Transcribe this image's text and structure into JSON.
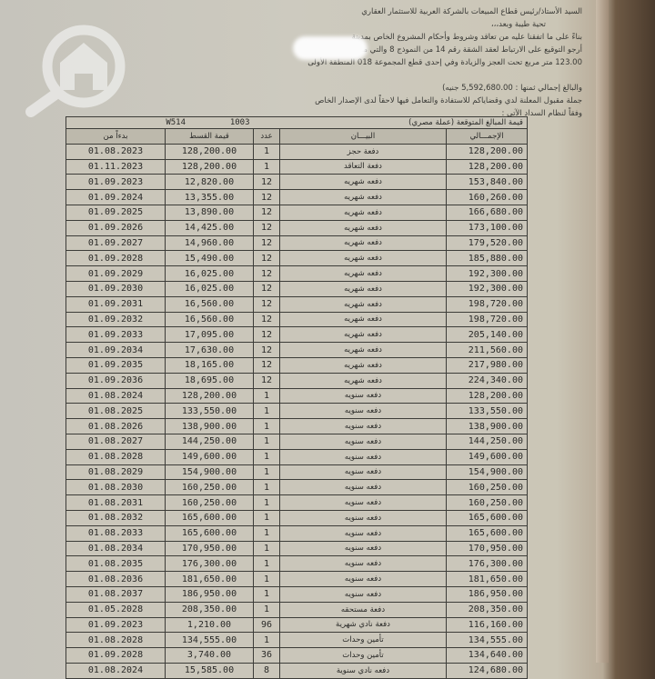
{
  "letter": {
    "salutation": "السيد الأستاذ/رئيس قطاع المبيعات بالشركة العربية للاستثمار العقاري",
    "greeting": "تحية طيبة وبعد،،،",
    "para1": [
      "بناءً على ما اتفقنا عليه من تعاقد وشروط وأحكام المشروع الخاص بمدينة",
      "أرجو التوقيع على الارتباط لعقد الشقة رقم 14 من النموذج 8 والتي مساحتها",
      "123.00 متر مربع تحت العجز والزيادة وفي إحدى قطع المجموعة 018 المنطقة الأولى"
    ],
    "total_line": "والبالغ إجمالي ثمنها : 5,592,680.00 جنيه)",
    "para2": [
      "جملة مقبول المعلنة لدي وقضاياكم للاستفادة والتعامل فيها لاحقاً لدى الإصدار الخاص",
      "وفقاً لنظام السداد الآتي :"
    ]
  },
  "watermark": "search-home-logo",
  "table": {
    "caption_codes": [
      "W514",
      "1003"
    ],
    "caption_title": "قيمة المبالغ المتوقعة (عملة مصري)",
    "headers": [
      "بدءاً من",
      "قيمة القسط",
      "عدد",
      "البيـــان",
      "الإجمـــالي"
    ],
    "rows": [
      [
        "01.08.2023",
        "128,200.00",
        "1",
        "دفعة حجز",
        "128,200.00"
      ],
      [
        "01.11.2023",
        "128,200.00",
        "1",
        "دفعة التعاقد",
        "128,200.00"
      ],
      [
        "01.09.2023",
        "12,820.00",
        "12",
        "دفعه شهريه",
        "153,840.00"
      ],
      [
        "01.09.2024",
        "13,355.00",
        "12",
        "دفعه شهريه",
        "160,260.00"
      ],
      [
        "01.09.2025",
        "13,890.00",
        "12",
        "دفعه شهريه",
        "166,680.00"
      ],
      [
        "01.09.2026",
        "14,425.00",
        "12",
        "دفعه شهريه",
        "173,100.00"
      ],
      [
        "01.09.2027",
        "14,960.00",
        "12",
        "دفعه شهريه",
        "179,520.00"
      ],
      [
        "01.09.2028",
        "15,490.00",
        "12",
        "دفعه شهريه",
        "185,880.00"
      ],
      [
        "01.09.2029",
        "16,025.00",
        "12",
        "دفعه شهريه",
        "192,300.00"
      ],
      [
        "01.09.2030",
        "16,025.00",
        "12",
        "دفعه شهريه",
        "192,300.00"
      ],
      [
        "01.09.2031",
        "16,560.00",
        "12",
        "دفعه شهريه",
        "198,720.00"
      ],
      [
        "01.09.2032",
        "16,560.00",
        "12",
        "دفعه شهريه",
        "198,720.00"
      ],
      [
        "01.09.2033",
        "17,095.00",
        "12",
        "دفعه شهريه",
        "205,140.00"
      ],
      [
        "01.09.2034",
        "17,630.00",
        "12",
        "دفعه شهريه",
        "211,560.00"
      ],
      [
        "01.09.2035",
        "18,165.00",
        "12",
        "دفعه شهريه",
        "217,980.00"
      ],
      [
        "01.09.2036",
        "18,695.00",
        "12",
        "دفعه شهريه",
        "224,340.00"
      ],
      [
        "01.08.2024",
        "128,200.00",
        "1",
        "دفعه سنويه",
        "128,200.00"
      ],
      [
        "01.08.2025",
        "133,550.00",
        "1",
        "دفعه سنويه",
        "133,550.00"
      ],
      [
        "01.08.2026",
        "138,900.00",
        "1",
        "دفعه سنويه",
        "138,900.00"
      ],
      [
        "01.08.2027",
        "144,250.00",
        "1",
        "دفعه سنويه",
        "144,250.00"
      ],
      [
        "01.08.2028",
        "149,600.00",
        "1",
        "دفعه سنويه",
        "149,600.00"
      ],
      [
        "01.08.2029",
        "154,900.00",
        "1",
        "دفعه سنويه",
        "154,900.00"
      ],
      [
        "01.08.2030",
        "160,250.00",
        "1",
        "دفعه سنويه",
        "160,250.00"
      ],
      [
        "01.08.2031",
        "160,250.00",
        "1",
        "دفعه سنويه",
        "160,250.00"
      ],
      [
        "01.08.2032",
        "165,600.00",
        "1",
        "دفعه سنويه",
        "165,600.00"
      ],
      [
        "01.08.2033",
        "165,600.00",
        "1",
        "دفعه سنويه",
        "165,600.00"
      ],
      [
        "01.08.2034",
        "170,950.00",
        "1",
        "دفعه سنويه",
        "170,950.00"
      ],
      [
        "01.08.2035",
        "176,300.00",
        "1",
        "دفعه سنويه",
        "176,300.00"
      ],
      [
        "01.08.2036",
        "181,650.00",
        "1",
        "دفعه سنويه",
        "181,650.00"
      ],
      [
        "01.08.2037",
        "186,950.00",
        "1",
        "دفعه سنويه",
        "186,950.00"
      ],
      [
        "01.05.2028",
        "208,350.00",
        "1",
        "دفعة مستحقه",
        "208,350.00"
      ],
      [
        "01.09.2023",
        "1,210.00",
        "96",
        "دفعة نادي شهرية",
        "116,160.00"
      ],
      [
        "01.08.2028",
        "134,555.00",
        "1",
        "تأمين وحدات",
        "134,555.00"
      ],
      [
        "01.09.2028",
        "3,740.00",
        "36",
        "تأمين وحدات",
        "134,640.00"
      ],
      [
        "01.08.2024",
        "15,585.00",
        "8",
        "دفعه نادي سنوية",
        "124,680.00"
      ]
    ]
  }
}
